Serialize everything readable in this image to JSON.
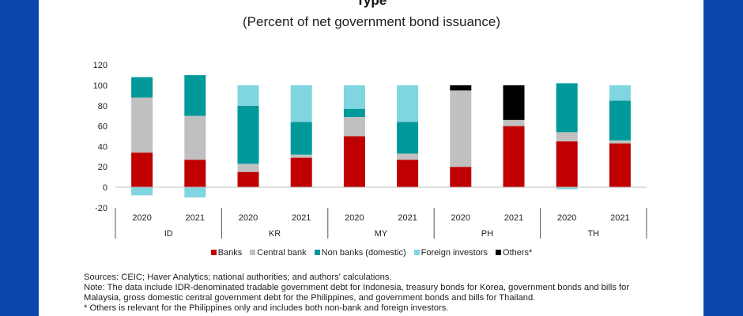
{
  "title": "Type",
  "subtitle": "(Percent of net government bond issuance)",
  "colors": {
    "frame": "#0a47ad",
    "banks": "#c00000",
    "central_bank": "#c0c0c0",
    "non_banks": "#009999",
    "foreign": "#7fd6e0",
    "others": "#000000"
  },
  "chart_data": {
    "type": "bar",
    "stacked": true,
    "title": "Type",
    "subtitle": "(Percent of net government bond issuance)",
    "xlabel": "",
    "ylabel": "",
    "ylim": [
      -20,
      120
    ],
    "yticks": [
      -20,
      0,
      20,
      40,
      60,
      80,
      100,
      120
    ],
    "grid": false,
    "legend_position": "bottom",
    "groups": [
      "ID",
      "KR",
      "MY",
      "PH",
      "TH"
    ],
    "categories": [
      "2020",
      "2021",
      "2020",
      "2021",
      "2020",
      "2021",
      "2020",
      "2021",
      "2020",
      "2021"
    ],
    "category_groups": [
      "ID",
      "ID",
      "KR",
      "KR",
      "MY",
      "MY",
      "PH",
      "PH",
      "TH",
      "TH"
    ],
    "series": [
      {
        "name": "Banks",
        "key": "banks",
        "values": [
          34,
          27,
          15,
          29,
          50,
          27,
          20,
          60,
          45,
          43
        ]
      },
      {
        "name": "Central bank",
        "key": "central_bank",
        "values": [
          54,
          43,
          8,
          3,
          19,
          6,
          75,
          6,
          9,
          3
        ]
      },
      {
        "name": "Non banks (domestic)",
        "key": "non_banks",
        "values": [
          20,
          40,
          57,
          32,
          8,
          31,
          0,
          0,
          48,
          39
        ]
      },
      {
        "name": "Foreign investors",
        "key": "foreign",
        "values": [
          -8,
          -10,
          20,
          36,
          23,
          36,
          0,
          0,
          -2,
          15
        ]
      },
      {
        "name": "Others*",
        "key": "others",
        "values": [
          0,
          0,
          0,
          0,
          0,
          0,
          5,
          34,
          0,
          0
        ]
      }
    ]
  },
  "notes": {
    "sources": "Sources: CEIC; Haver Analytics; national authorities; and authors' calculations.",
    "note_line1": "Note: The data include IDR-denominated tradable government debt for Indonesia, treasury bonds for Korea, government bonds and bills for",
    "note_line2": "Malaysia, gross domestic central government debt for the Philippines, and government bonds and bills for Thailand.",
    "footnote": "* Others is relevant for the Philippines only and includes both non-bank and foreign investors."
  }
}
